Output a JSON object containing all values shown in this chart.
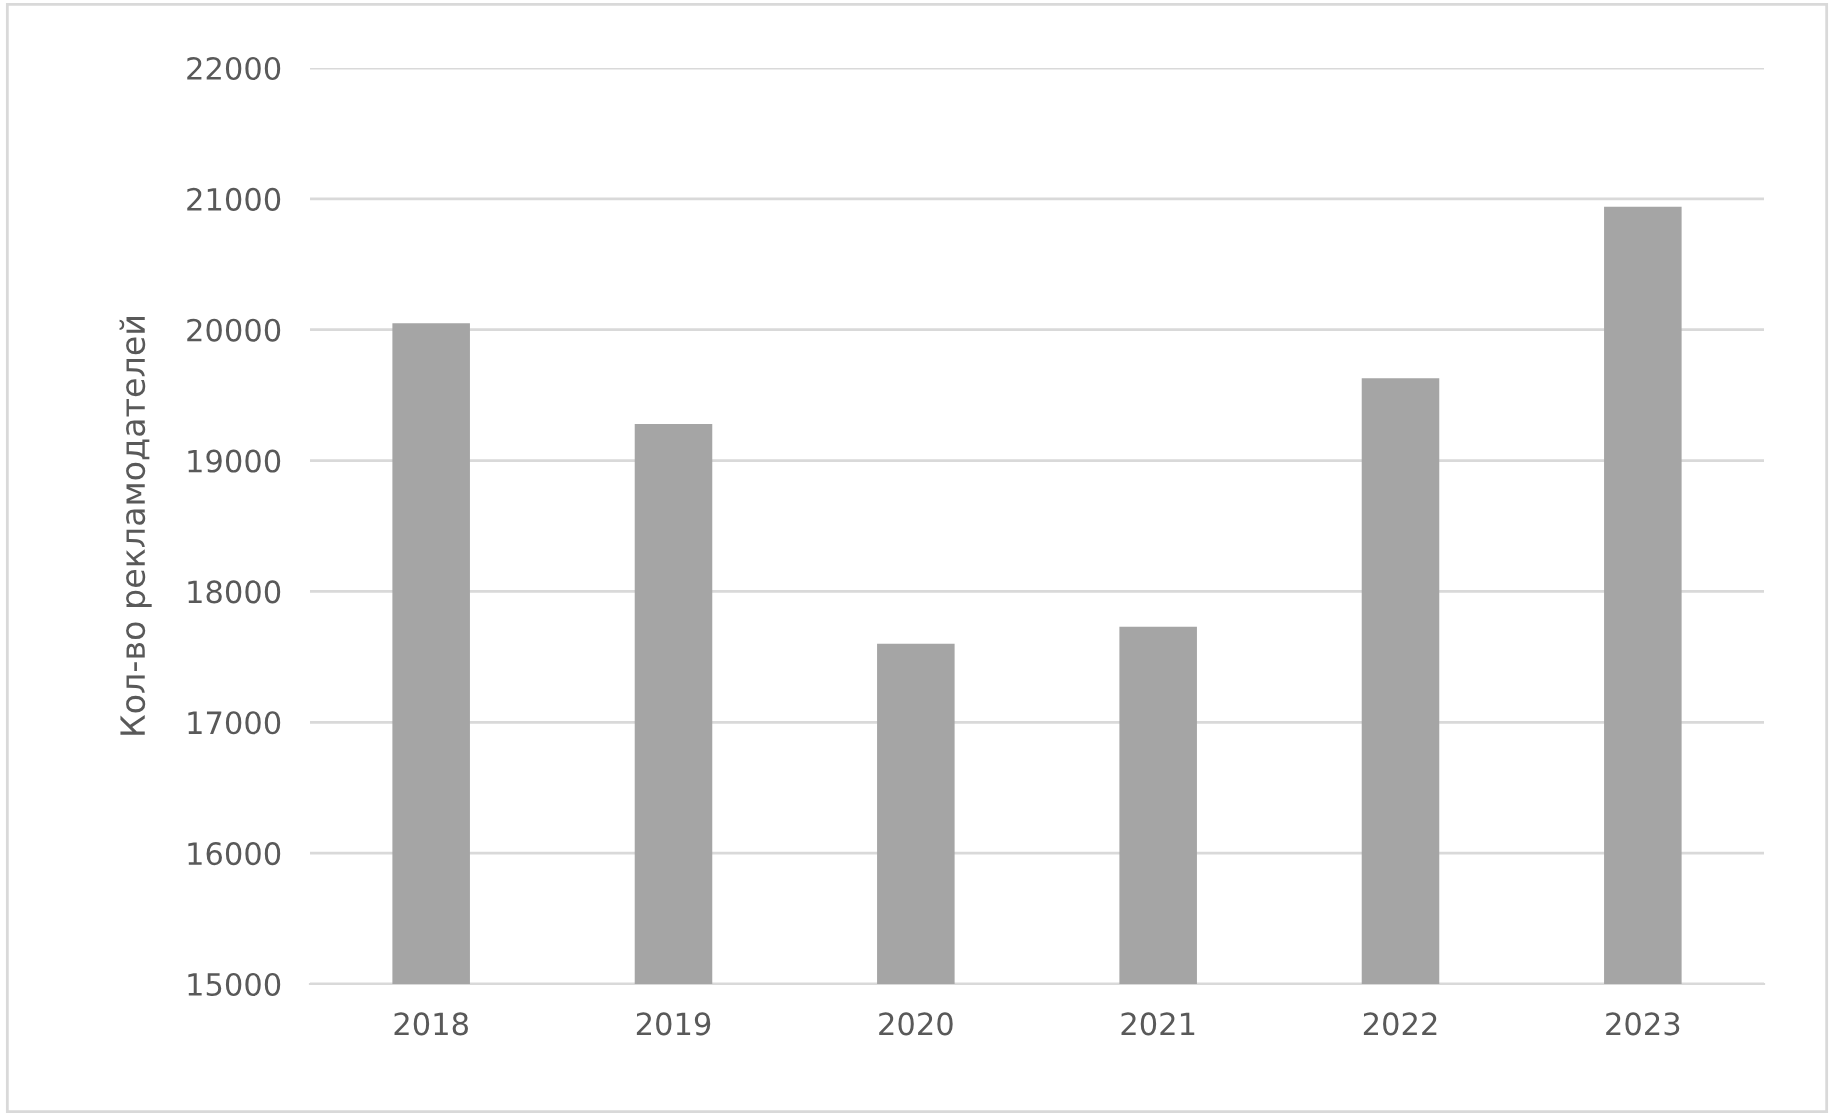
{
  "chart_data": {
    "type": "bar",
    "ylabel": "Кол-во рекламодателей",
    "categories": [
      "2018",
      "2019",
      "2020",
      "2021",
      "2022",
      "2023"
    ],
    "values": [
      20050,
      19280,
      17600,
      17730,
      19630,
      20940
    ],
    "color": "#a5a5a5",
    "ylim": [
      15000,
      22000
    ],
    "yticks": [
      15000,
      16000,
      17000,
      18000,
      19000,
      20000,
      21000,
      22000
    ],
    "grid": "y"
  }
}
